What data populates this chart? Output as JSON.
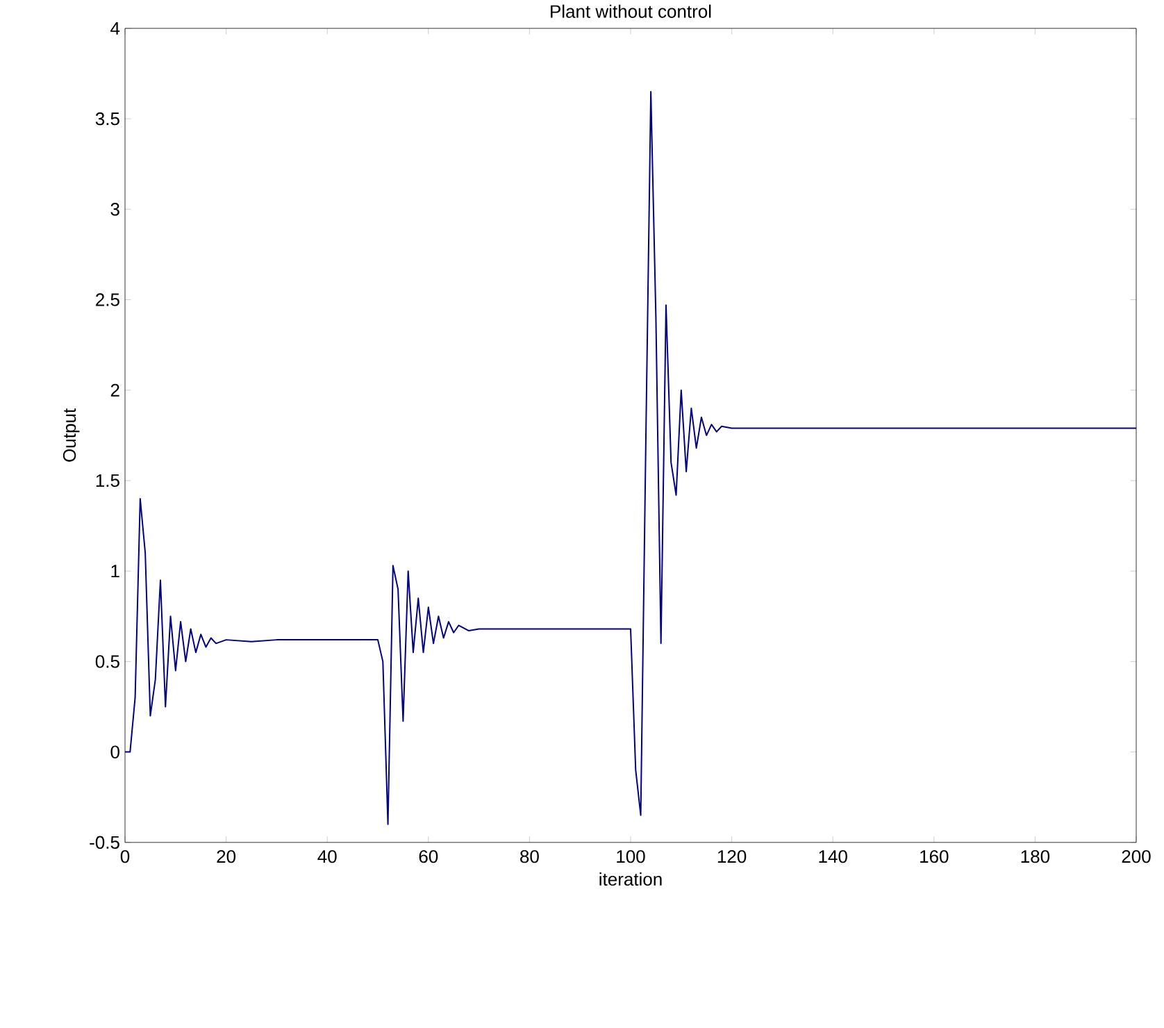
{
  "chart_data": {
    "type": "line",
    "title": "Plant without control",
    "xlabel": "iteration",
    "ylabel": "Output",
    "xlim": [
      0,
      200
    ],
    "ylim": [
      -0.5,
      4
    ],
    "xticks": [
      0,
      20,
      40,
      60,
      80,
      100,
      120,
      140,
      160,
      180,
      200
    ],
    "yticks": [
      -0.5,
      0,
      0.5,
      1,
      1.5,
      2,
      2.5,
      3,
      3.5,
      4
    ],
    "x": [
      0,
      1,
      2,
      3,
      4,
      5,
      6,
      7,
      8,
      9,
      10,
      11,
      12,
      13,
      14,
      15,
      16,
      17,
      18,
      20,
      25,
      30,
      50,
      51,
      52,
      53,
      54,
      55,
      56,
      57,
      58,
      59,
      60,
      61,
      62,
      63,
      64,
      65,
      66,
      68,
      70,
      100,
      101,
      102,
      103,
      104,
      105,
      106,
      107,
      108,
      109,
      110,
      111,
      112,
      113,
      114,
      115,
      116,
      117,
      118,
      120,
      125,
      200
    ],
    "series": [
      {
        "color": "#000080",
        "values": [
          0,
          0,
          0.3,
          1.4,
          1.1,
          0.2,
          0.4,
          0.95,
          0.25,
          0.75,
          0.45,
          0.72,
          0.5,
          0.68,
          0.55,
          0.65,
          0.58,
          0.63,
          0.6,
          0.62,
          0.61,
          0.62,
          0.62,
          0.5,
          -0.4,
          1.03,
          0.9,
          0.17,
          1.0,
          0.55,
          0.85,
          0.55,
          0.8,
          0.6,
          0.75,
          0.63,
          0.72,
          0.66,
          0.7,
          0.67,
          0.68,
          0.68,
          -0.1,
          -0.35,
          1.7,
          3.65,
          2.4,
          0.6,
          2.47,
          1.6,
          1.42,
          2.0,
          1.55,
          1.9,
          1.68,
          1.85,
          1.75,
          1.81,
          1.77,
          1.8,
          1.79,
          1.79,
          1.79
        ]
      }
    ]
  }
}
